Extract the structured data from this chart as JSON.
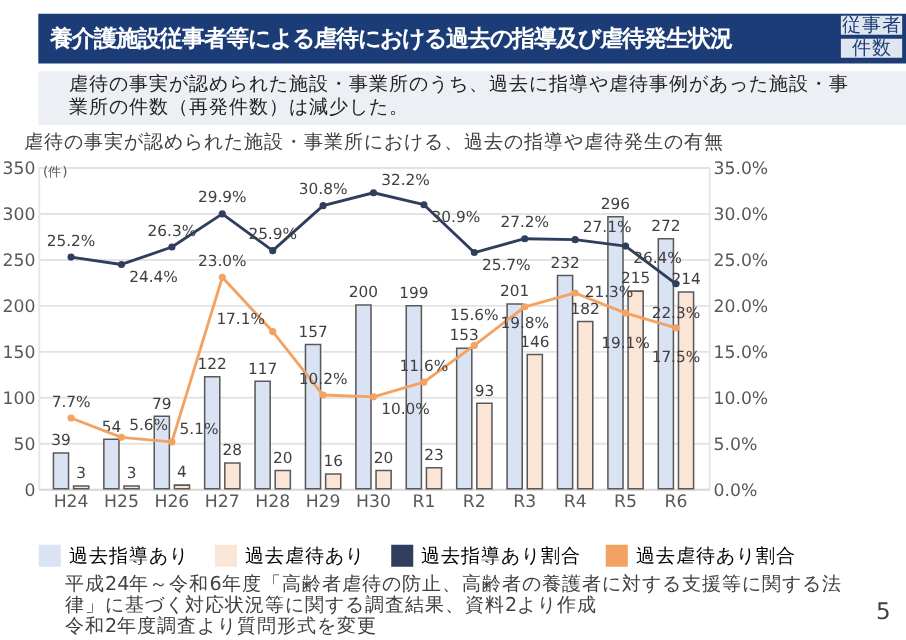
{
  "chart_data": {
    "type": "bar",
    "title": "養介護施設従事者等による虐待における過去の指導及び虐待発生状況",
    "subtitle": "虐待の事実が認められた施設・事業所のうち、過去に指導や虐待事例があった施設・事業所の件数（再発件数）は減少した。",
    "ylabel": "(件)",
    "categories": [
      "H24",
      "H25",
      "H26",
      "H27",
      "H28",
      "H29",
      "H30",
      "R1",
      "R2",
      "R3",
      "R4",
      "R5",
      "R6"
    ],
    "series": [
      {
        "name": "過去指導あり",
        "color": "#dae3f3",
        "values": [
          39,
          54,
          79,
          122,
          117,
          157,
          200,
          199,
          153,
          201,
          232,
          296,
          272
        ],
        "value_labels": [
          "39",
          "54",
          "79",
          "122",
          "117",
          "157",
          "200",
          "199",
          "153",
          "201",
          "232",
          "296",
          "272"
        ]
      },
      {
        "name": "過去虐待あり",
        "color": "#fbe5d6",
        "values": [
          3,
          3,
          4,
          28,
          20,
          16,
          20,
          23,
          93,
          146,
          182,
          215,
          214
        ],
        "value_labels": [
          "3",
          "3",
          "4",
          "28",
          "20",
          "16",
          "20",
          "23",
          "93",
          "146",
          "182",
          "215",
          "214"
        ]
      },
      {
        "name": "過去指導あり割合",
        "type": "line",
        "axis": "y2",
        "marker": "circle",
        "color": "#2f3e5c",
        "values": [
          25.2,
          24.4,
          26.3,
          29.9,
          25.9,
          30.8,
          32.2,
          30.9,
          25.7,
          27.2,
          27.1,
          26.4,
          22.3
        ],
        "value_labels": [
          "25.2%",
          "24.4%",
          "26.3%",
          "29.9%",
          "25.9%",
          "30.8%",
          "32.2%",
          "30.9%",
          "25.7%",
          "27.2%",
          "27.1%",
          "26.4%",
          "22.3%"
        ]
      },
      {
        "name": "過去虐待あり割合",
        "type": "line",
        "axis": "y2",
        "marker": "circle",
        "color": "#f4a261",
        "values": [
          7.7,
          5.6,
          5.1,
          23.0,
          17.1,
          10.2,
          10.0,
          11.6,
          15.6,
          19.8,
          21.3,
          19.1,
          17.5
        ],
        "value_labels": [
          "7.7%",
          "5.6%",
          "5.1%",
          "23.0%",
          "17.1%",
          "10.2%",
          "10.0%",
          "11.6%",
          "15.6%",
          "19.8%",
          "21.3%",
          "19.1%",
          "17.5%"
        ]
      }
    ],
    "ylim": [
      0,
      350
    ],
    "yticks": [
      0,
      50,
      100,
      150,
      200,
      250,
      300,
      350
    ],
    "y2lim": [
      0,
      35
    ],
    "y2ticks": [
      {
        "value": 0,
        "label": "0.0%"
      },
      {
        "value": 5,
        "label": "5.0%"
      },
      {
        "value": 10,
        "label": "10.0%"
      },
      {
        "value": 15,
        "label": "15.0%"
      },
      {
        "value": 20,
        "label": "20.0%"
      },
      {
        "value": 25,
        "label": "25.0%"
      },
      {
        "value": 30,
        "label": "30.0%"
      },
      {
        "value": 35,
        "label": "35.0%"
      }
    ],
    "grid": "y",
    "legend": "bottom",
    "annotations": [
      "虐待の事実が認められた施設・事業所における、過去の指導や虐待発生の有無",
      "従事者",
      "件数",
      "平成24年～令和6年度「高齢者虐待の防止、高齢者の養護者に対する支援等に関する法律」に基づく対応状況等に関する調査結果、資料2より作成",
      "令和2年度調査より質問形式を変更",
      "5"
    ]
  }
}
